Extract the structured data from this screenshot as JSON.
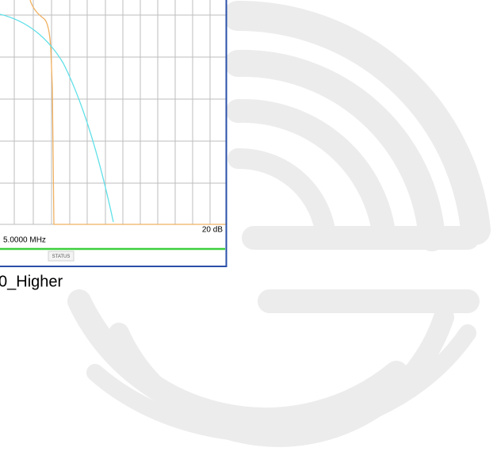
{
  "panel": {
    "scale_label": "20 dB",
    "frequency_label": "5.0000 MHz",
    "status_button": "STATUS"
  },
  "caption": "0_Higher"
}
